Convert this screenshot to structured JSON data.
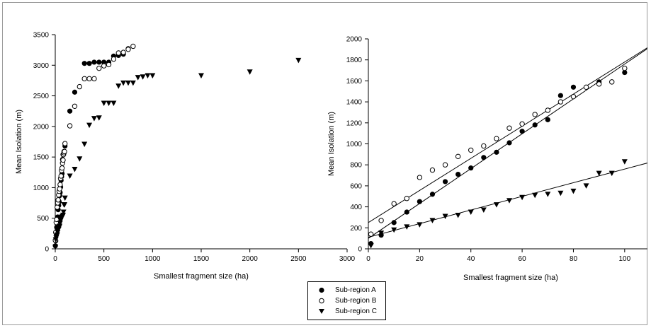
{
  "legend": {
    "items": [
      {
        "label": "Sub-region A",
        "marker": "filled-circle"
      },
      {
        "label": "Sub-region B",
        "marker": "open-circle"
      },
      {
        "label": "Sub-region C",
        "marker": "filled-triangle-down"
      }
    ]
  },
  "chart_data": [
    {
      "type": "scatter",
      "title": "",
      "xlabel": "Smallest fragment size (ha)",
      "ylabel": "Mean Isolation (m)",
      "xlim": [
        0,
        3000
      ],
      "ylim": [
        0,
        3500
      ],
      "xticks": [
        0,
        500,
        1000,
        1500,
        2000,
        2500,
        3000
      ],
      "yticks": [
        0,
        500,
        1000,
        1500,
        2000,
        2500,
        3000,
        3500
      ],
      "grid": false,
      "series": [
        {
          "name": "Sub-region A",
          "marker": "filled-circle",
          "x": [
            1,
            5,
            10,
            15,
            20,
            25,
            30,
            35,
            40,
            45,
            50,
            55,
            60,
            65,
            70,
            75,
            80,
            90,
            100,
            150,
            200,
            300,
            350,
            400,
            450,
            500,
            550,
            600,
            650,
            700,
            750
          ],
          "y": [
            50,
            130,
            250,
            350,
            450,
            520,
            640,
            710,
            770,
            870,
            920,
            1010,
            1120,
            1180,
            1230,
            1460,
            1540,
            1590,
            1680,
            2250,
            2560,
            3030,
            3030,
            3050,
            3050,
            3050,
            3050,
            3150,
            3160,
            3180,
            3270
          ]
        },
        {
          "name": "Sub-region B",
          "marker": "open-circle",
          "x": [
            1,
            5,
            10,
            15,
            20,
            25,
            30,
            35,
            40,
            45,
            50,
            55,
            60,
            65,
            70,
            75,
            80,
            85,
            90,
            95,
            100,
            150,
            200,
            250,
            300,
            350,
            400,
            450,
            500,
            550,
            600,
            650,
            700,
            750,
            800
          ],
          "y": [
            140,
            270,
            430,
            480,
            680,
            750,
            800,
            880,
            940,
            980,
            1050,
            1150,
            1190,
            1280,
            1320,
            1400,
            1450,
            1540,
            1570,
            1590,
            1720,
            2010,
            2330,
            2650,
            2780,
            2780,
            2780,
            2950,
            2990,
            3010,
            3100,
            3200,
            3210,
            3260,
            3310
          ]
        },
        {
          "name": "Sub-region C",
          "marker": "filled-triangle-down",
          "x": [
            1,
            5,
            10,
            15,
            20,
            25,
            30,
            35,
            40,
            45,
            50,
            55,
            60,
            65,
            70,
            75,
            80,
            85,
            90,
            95,
            100,
            150,
            200,
            250,
            300,
            350,
            400,
            450,
            500,
            550,
            600,
            650,
            700,
            750,
            800,
            850,
            900,
            950,
            1000,
            1500,
            2000,
            2500
          ],
          "y": [
            30,
            150,
            180,
            210,
            230,
            270,
            310,
            320,
            350,
            370,
            420,
            460,
            490,
            510,
            520,
            530,
            550,
            600,
            720,
            720,
            830,
            1190,
            1300,
            1470,
            1710,
            2020,
            2130,
            2140,
            2380,
            2380,
            2380,
            2660,
            2710,
            2710,
            2710,
            2800,
            2810,
            2830,
            2830,
            2830,
            2890,
            3080
          ]
        }
      ]
    },
    {
      "type": "scatter",
      "title": "",
      "xlabel": "Smallest fragment size (ha)",
      "ylabel": "Mean Isolation (m)",
      "xlim": [
        0,
        110
      ],
      "ylim": [
        0,
        2000
      ],
      "xticks": [
        0,
        20,
        40,
        60,
        80,
        100
      ],
      "yticks": [
        0,
        200,
        400,
        600,
        800,
        1000,
        1200,
        1400,
        1600,
        1800,
        2000
      ],
      "grid": false,
      "series": [
        {
          "name": "Sub-region A",
          "marker": "filled-circle",
          "x": [
            1,
            5,
            10,
            15,
            20,
            25,
            30,
            35,
            40,
            45,
            50,
            55,
            60,
            65,
            70,
            75,
            80,
            90,
            100
          ],
          "y": [
            50,
            130,
            250,
            350,
            450,
            520,
            640,
            710,
            770,
            870,
            920,
            1010,
            1120,
            1180,
            1230,
            1460,
            1540,
            1590,
            1680
          ],
          "fit": {
            "intercept": 100,
            "slope": 16.6
          }
        },
        {
          "name": "Sub-region B",
          "marker": "open-circle",
          "x": [
            1,
            5,
            10,
            15,
            20,
            25,
            30,
            35,
            40,
            45,
            50,
            55,
            60,
            65,
            70,
            75,
            80,
            85,
            90,
            95,
            100
          ],
          "y": [
            140,
            270,
            430,
            480,
            680,
            750,
            800,
            880,
            940,
            980,
            1050,
            1150,
            1190,
            1280,
            1320,
            1400,
            1450,
            1540,
            1570,
            1590,
            1720
          ],
          "fit": {
            "intercept": 250,
            "slope": 15.3
          }
        },
        {
          "name": "Sub-region C",
          "marker": "filled-triangle-down",
          "x": [
            1,
            5,
            10,
            15,
            20,
            25,
            30,
            35,
            40,
            45,
            50,
            55,
            60,
            65,
            70,
            75,
            80,
            85,
            90,
            95,
            100
          ],
          "y": [
            30,
            150,
            180,
            210,
            230,
            270,
            310,
            320,
            350,
            370,
            420,
            460,
            490,
            510,
            520,
            530,
            550,
            600,
            720,
            720,
            830
          ],
          "fit": {
            "intercept": 110,
            "slope": 6.5
          }
        }
      ]
    }
  ]
}
